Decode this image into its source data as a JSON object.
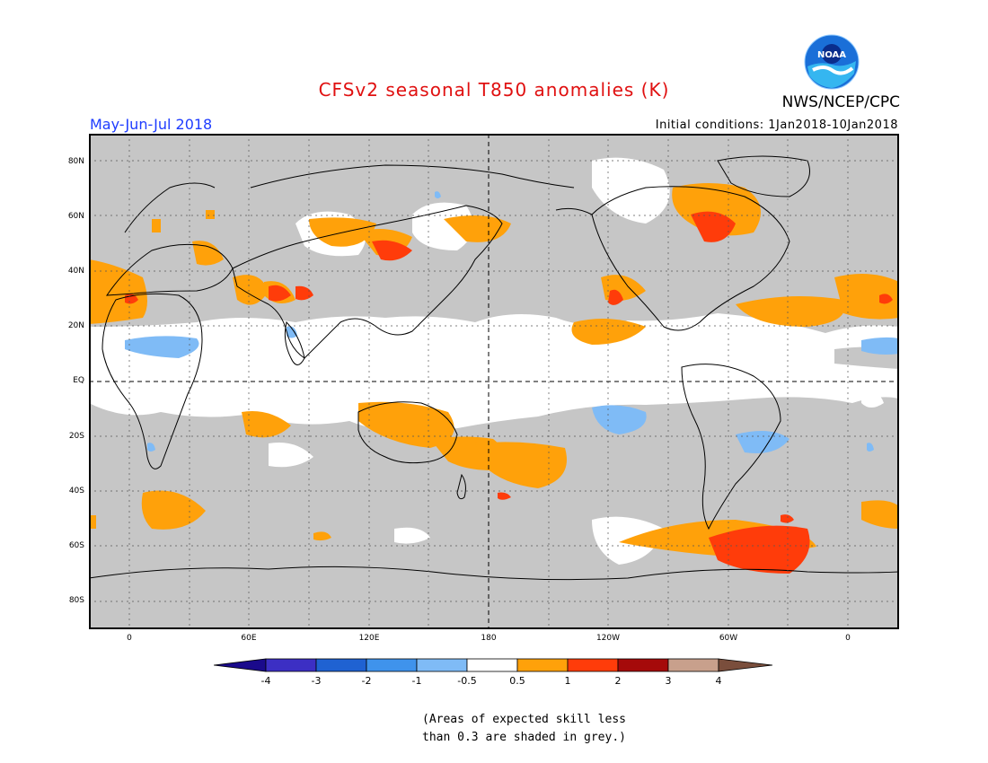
{
  "header": {
    "title": "CFSv2 seasonal T850 anomalies (K)",
    "agency": "NWS/NCEP/CPC",
    "logo_text": "NOAA",
    "period": "May-Jun-Jul 2018",
    "initial_conditions": "Initial conditions: 1Jan2018-10Jan2018"
  },
  "axes": {
    "lat_labels": [
      "80N",
      "60N",
      "40N",
      "20N",
      "EQ",
      "20S",
      "40S",
      "60S",
      "80S"
    ],
    "lon_labels": [
      "0",
      "60E",
      "120E",
      "180",
      "120W",
      "60W",
      "0"
    ]
  },
  "colorbar": {
    "labels": [
      "-4",
      "-3",
      "-2",
      "-1",
      "-0.5",
      "0.5",
      "1",
      "2",
      "3",
      "4"
    ],
    "colors": [
      "#1a0a8c",
      "#3c2fc4",
      "#1f62d2",
      "#3f93ec",
      "#7fbbf6",
      "#ffffff",
      "#ffa10a",
      "#ff3c0a",
      "#a50a0a",
      "#c8a08c",
      "#7a4e3c"
    ]
  },
  "palette": {
    "grey_mask": "#c6c6c6",
    "warm_1": "#ffa10a",
    "warm_2": "#ff3c0a",
    "cool_1": "#7fbbf6",
    "title_red": "#e01010",
    "period_blue": "#1e3cff"
  },
  "note": {
    "line1": "(Areas of expected skill less",
    "line2": "than 0.3 are shaded in grey.)"
  }
}
